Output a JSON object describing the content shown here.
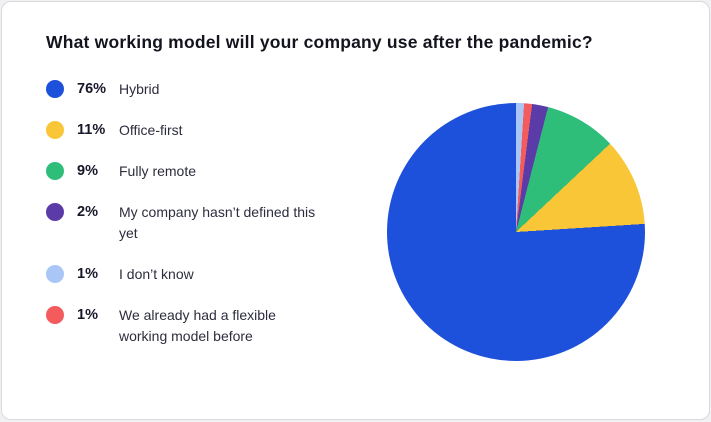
{
  "chart_data": {
    "type": "pie",
    "title": "What working model will your company use after the pandemic?",
    "legend_position": "left",
    "start_angle_deg": 0,
    "direction": "clockwise",
    "slices": [
      {
        "label": "Hybrid",
        "value": 76,
        "percent_label": "76%",
        "color": "#1d51db"
      },
      {
        "label": "Office-first",
        "value": 11,
        "percent_label": "11%",
        "color": "#f8c636"
      },
      {
        "label": "Fully remote",
        "value": 9,
        "percent_label": "9%",
        "color": "#2fbe7a"
      },
      {
        "label": "My company hasn’t defined this yet",
        "value": 2,
        "percent_label": "2%",
        "color": "#5b3ba8"
      },
      {
        "label": "I don’t know",
        "value": 1,
        "percent_label": "1%",
        "color": "#a9c6f7"
      },
      {
        "label": "We already had a flexible working model before",
        "value": 1,
        "percent_label": "1%",
        "color": "#f45b5d"
      }
    ],
    "clockwise_order": [
      4,
      5,
      3,
      2,
      1,
      0
    ]
  }
}
